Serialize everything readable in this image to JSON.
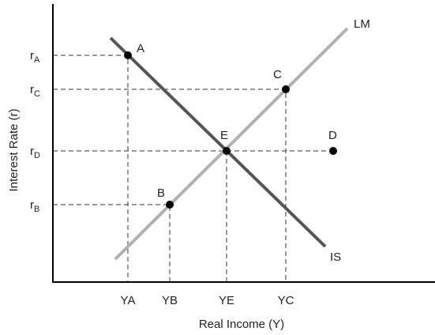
{
  "diagram": {
    "y_axis_label": "Interest Rate (r)",
    "x_axis_label": "Real Income (Y)",
    "y_ticks": [
      {
        "base": "r",
        "sub": "A"
      },
      {
        "base": "r",
        "sub": "C"
      },
      {
        "base": "r",
        "sub": "D"
      },
      {
        "base": "r",
        "sub": "B"
      }
    ],
    "x_ticks": [
      "YA",
      "YB",
      "YE",
      "YC"
    ],
    "curves": [
      "LM",
      "IS"
    ],
    "points": [
      "A",
      "B",
      "C",
      "D",
      "E"
    ]
  }
}
